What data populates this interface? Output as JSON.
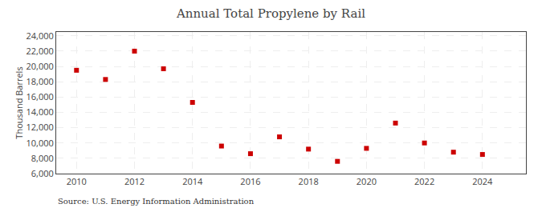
{
  "chart_data": {
    "type": "scatter",
    "title": "Annual Total Propylene by Rail",
    "ylabel": "Thousand Barrels",
    "annotations": [
      "Source: U.S. Energy Information Administration"
    ],
    "x": [
      2010,
      2011,
      2012,
      2013,
      2014,
      2015,
      2016,
      2017,
      2018,
      2019,
      2020,
      2021,
      2022,
      2023,
      2024
    ],
    "values": [
      19500,
      18300,
      22000,
      19700,
      15300,
      9600,
      8600,
      10800,
      9200,
      7600,
      9300,
      12600,
      10000,
      8800,
      8500
    ],
    "color": "#cc0000",
    "marker": "square",
    "xlim": [
      2009.3,
      2025.5
    ],
    "xticks": [
      2010,
      2012,
      2014,
      2016,
      2018,
      2020,
      2022,
      2024
    ],
    "ylim": [
      6000,
      24500
    ],
    "yticks": [
      {
        "value": 6000,
        "label": "6,000"
      },
      {
        "value": 8000,
        "label": "8,000"
      },
      {
        "value": 10000,
        "label": "10,000"
      },
      {
        "value": 12000,
        "label": "12,000"
      },
      {
        "value": 14000,
        "label": "14,000"
      },
      {
        "value": 16000,
        "label": "16,000"
      },
      {
        "value": 18000,
        "label": "18,000"
      },
      {
        "value": 20000,
        "label": "20,000"
      },
      {
        "value": 22000,
        "label": "22,000"
      },
      {
        "value": 24000,
        "label": "24,000"
      }
    ],
    "grid": true
  }
}
